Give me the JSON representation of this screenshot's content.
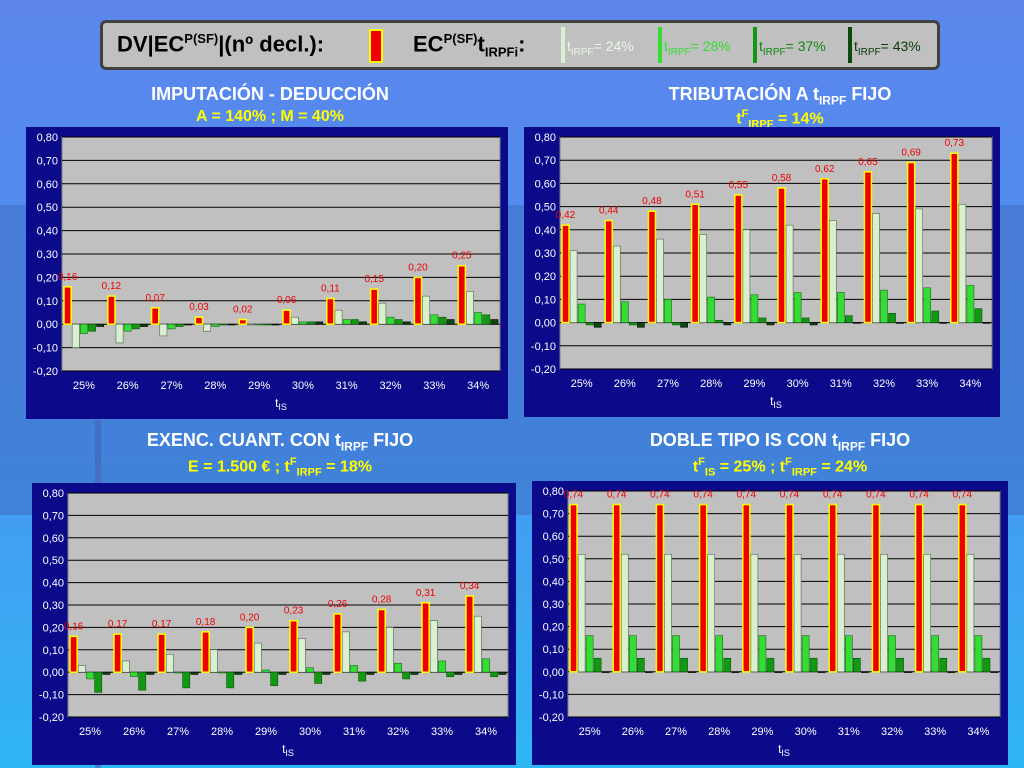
{
  "legend": {
    "left_label": "DV|EC",
    "left_sup": "P(SF)",
    "left_rest": "|(nº decl.):",
    "right_label": "EC",
    "right_sup": "P(SF)",
    "right_t": "t",
    "right_sub": "IRPFi",
    "right_colon": ":",
    "items": [
      {
        "t": "t",
        "sub": "IRPF",
        "text": "= 24%",
        "color": "#d8f0d0",
        "text_color": "#e8f8e8"
      },
      {
        "t": "t",
        "sub": "IRPF",
        "text": "= 28%",
        "color": "#33dd33",
        "text_color": "#33dd33"
      },
      {
        "t": "t",
        "sub": "IRPF",
        "text": "= 37%",
        "color": "#119911",
        "text_color": "#118811"
      },
      {
        "t": "t",
        "sub": "IRPF",
        "text": "= 43%",
        "color": "#0a4a0a",
        "text_color": "#0a3a0a"
      }
    ],
    "red_color": "#ee0000",
    "yellow_color": "#ffff00"
  },
  "panels": [
    {
      "title": "IMPUTACIÓN - DEDUCCIÓN",
      "title_sub": "",
      "title_end": "",
      "subtitle": "A = 140%    ;    M = 40%"
    },
    {
      "title": "TRIBUTACIÓN A t",
      "title_sub": "IRPF",
      "title_end": " FIJO",
      "subtitle_pre": "t",
      "subtitle_sup": "F",
      "subtitle_sub": "IRPF",
      "subtitle_end": " = 14%"
    },
    {
      "title": "EXENC. CUANT. CON t",
      "title_sub": "IRPF",
      "title_end": " FIJO",
      "subtitle_pre": "E = 1.500 €    ;    t",
      "subtitle_sup": "F",
      "subtitle_sub": "IRPF",
      "subtitle_end": " = 18%"
    },
    {
      "title": "DOBLE TIPO IS CON t",
      "title_sub": "IRPF",
      "title_end": " FIJO",
      "subtitle_pre": "t",
      "subtitle_sup": "F",
      "subtitle_sub": "IS",
      "subtitle_mid": " = 25% ;   t",
      "subtitle_sup2": "F",
      "subtitle_sub2": "IRPF",
      "subtitle_end": " = 24%"
    }
  ],
  "chart_data": [
    {
      "type": "bar",
      "xlabel": "t",
      "xlabel_sub": "IS",
      "categories": [
        "25%",
        "26%",
        "27%",
        "28%",
        "29%",
        "30%",
        "31%",
        "32%",
        "33%",
        "34%"
      ],
      "ylim": [
        -0.2,
        0.8
      ],
      "yticks": [
        "0,80",
        "0,70",
        "0,60",
        "0,50",
        "0,40",
        "0,30",
        "0,20",
        "0,10",
        "0,00",
        "-0,10",
        "-0,20"
      ],
      "data_labels": [
        "0,16",
        "0,12",
        "0,07",
        "0,03",
        "0,02",
        "0,06",
        "0,11",
        "0,15",
        "0,20",
        "0,25"
      ],
      "series": [
        {
          "values": [
            0.16,
            0.12,
            0.07,
            0.03,
            0.02,
            0.06,
            0.11,
            0.15,
            0.2,
            0.25
          ]
        },
        {
          "values": [
            -0.1,
            -0.08,
            -0.05,
            -0.03,
            0.0,
            0.03,
            0.06,
            0.09,
            0.12,
            0.14
          ]
        },
        {
          "values": [
            -0.04,
            -0.03,
            -0.02,
            -0.01,
            0.0,
            0.01,
            0.02,
            0.03,
            0.04,
            0.05
          ]
        },
        {
          "values": [
            -0.03,
            -0.02,
            -0.01,
            0.0,
            0.0,
            0.01,
            0.02,
            0.02,
            0.03,
            0.04
          ]
        },
        {
          "values": [
            -0.01,
            -0.01,
            0.0,
            0.0,
            0.0,
            0.01,
            0.01,
            0.01,
            0.02,
            0.02
          ]
        }
      ]
    },
    {
      "type": "bar",
      "xlabel": "t",
      "xlabel_sub": "IS",
      "categories": [
        "25%",
        "26%",
        "27%",
        "28%",
        "29%",
        "30%",
        "31%",
        "32%",
        "33%",
        "34%"
      ],
      "ylim": [
        -0.2,
        0.8
      ],
      "yticks": [
        "0,80",
        "0,70",
        "0,60",
        "0,50",
        "0,40",
        "0,30",
        "0,20",
        "0,10",
        "0,00",
        "-0,10",
        "-0,20"
      ],
      "data_labels": [
        "0,42",
        "0,44",
        "0,48",
        "0,51",
        "0,55",
        "0,58",
        "0,62",
        "0,65",
        "0,69",
        "0,73"
      ],
      "series": [
        {
          "values": [
            0.42,
            0.44,
            0.48,
            0.51,
            0.55,
            0.58,
            0.62,
            0.65,
            0.69,
            0.73
          ]
        },
        {
          "values": [
            0.31,
            0.33,
            0.36,
            0.38,
            0.4,
            0.42,
            0.44,
            0.47,
            0.49,
            0.51
          ]
        },
        {
          "values": [
            0.08,
            0.09,
            0.1,
            0.11,
            0.12,
            0.13,
            0.13,
            0.14,
            0.15,
            0.16
          ]
        },
        {
          "values": [
            -0.01,
            -0.01,
            -0.01,
            0.01,
            0.02,
            0.02,
            0.03,
            0.04,
            0.05,
            0.06
          ]
        },
        {
          "values": [
            -0.02,
            -0.02,
            -0.02,
            -0.01,
            -0.01,
            -0.01,
            0.0,
            0.0,
            0.0,
            0.0
          ]
        }
      ]
    },
    {
      "type": "bar",
      "xlabel": "t",
      "xlabel_sub": "IS",
      "categories": [
        "25%",
        "26%",
        "27%",
        "28%",
        "29%",
        "30%",
        "31%",
        "32%",
        "33%",
        "34%"
      ],
      "ylim": [
        -0.2,
        0.8
      ],
      "yticks": [
        "0,80",
        "0,70",
        "0,60",
        "0,50",
        "0,40",
        "0,30",
        "0,20",
        "0,10",
        "0,00",
        "-0,10",
        "-0,20"
      ],
      "data_labels": [
        "0,16",
        "0,17",
        "0,17",
        "0,18",
        "0,20",
        "0,23",
        "0,26",
        "0,28",
        "0,31",
        "0,34"
      ],
      "series": [
        {
          "values": [
            0.16,
            0.17,
            0.17,
            0.18,
            0.2,
            0.23,
            0.26,
            0.28,
            0.31,
            0.34
          ]
        },
        {
          "values": [
            0.03,
            0.05,
            0.08,
            0.1,
            0.13,
            0.15,
            0.18,
            0.2,
            0.23,
            0.25
          ]
        },
        {
          "values": [
            -0.03,
            -0.02,
            0.0,
            0.0,
            0.01,
            0.02,
            0.03,
            0.04,
            0.05,
            0.06
          ]
        },
        {
          "values": [
            -0.09,
            -0.08,
            -0.07,
            -0.07,
            -0.06,
            -0.05,
            -0.04,
            -0.03,
            -0.02,
            -0.02
          ]
        },
        {
          "values": [
            -0.01,
            -0.01,
            -0.01,
            -0.01,
            -0.01,
            -0.01,
            -0.01,
            -0.01,
            -0.01,
            -0.01
          ]
        }
      ]
    },
    {
      "type": "bar",
      "xlabel": "t",
      "xlabel_sub": "IS",
      "categories": [
        "25%",
        "26%",
        "27%",
        "28%",
        "29%",
        "30%",
        "31%",
        "32%",
        "33%",
        "34%"
      ],
      "ylim": [
        -0.2,
        0.8
      ],
      "yticks": [
        "0,80",
        "0,70",
        "0,60",
        "0,50",
        "0,40",
        "0,30",
        "0,20",
        "0,10",
        "0,00",
        "-0,10",
        "-0,20"
      ],
      "data_labels": [
        "0,74",
        "0,74",
        "0,74",
        "0,74",
        "0,74",
        "0,74",
        "0,74",
        "0,74",
        "0,74",
        "0,74"
      ],
      "series": [
        {
          "values": [
            0.74,
            0.74,
            0.74,
            0.74,
            0.74,
            0.74,
            0.74,
            0.74,
            0.74,
            0.74
          ]
        },
        {
          "values": [
            0.52,
            0.52,
            0.52,
            0.52,
            0.52,
            0.52,
            0.52,
            0.52,
            0.52,
            0.52
          ]
        },
        {
          "values": [
            0.16,
            0.16,
            0.16,
            0.16,
            0.16,
            0.16,
            0.16,
            0.16,
            0.16,
            0.16
          ]
        },
        {
          "values": [
            0.06,
            0.06,
            0.06,
            0.06,
            0.06,
            0.06,
            0.06,
            0.06,
            0.06,
            0.06
          ]
        },
        {
          "values": [
            0.0,
            0.0,
            0.0,
            0.0,
            0.0,
            0.0,
            0.0,
            0.0,
            0.0,
            0.0
          ]
        }
      ]
    }
  ]
}
